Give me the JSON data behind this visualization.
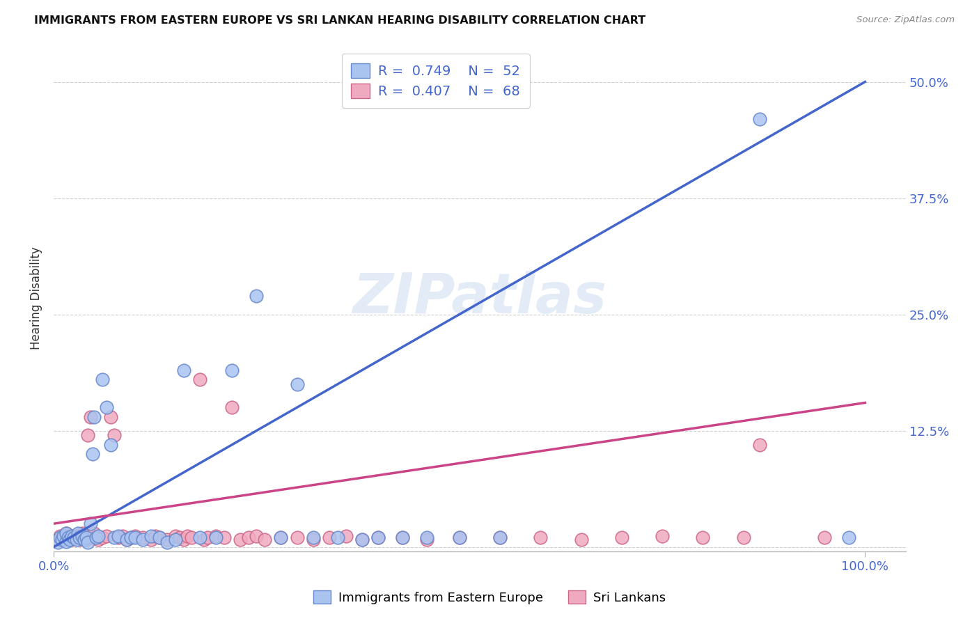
{
  "title": "IMMIGRANTS FROM EASTERN EUROPE VS SRI LANKAN HEARING DISABILITY CORRELATION CHART",
  "source": "Source: ZipAtlas.com",
  "ylabel": "Hearing Disability",
  "xlim": [
    0.0,
    1.05
  ],
  "ylim": [
    -0.005,
    0.54
  ],
  "xticks": [
    0.0,
    1.0
  ],
  "xticklabels": [
    "0.0%",
    "100.0%"
  ],
  "ytick_positions": [
    0.125,
    0.25,
    0.375,
    0.5
  ],
  "yticklabels": [
    "12.5%",
    "25.0%",
    "37.5%",
    "50.0%"
  ],
  "grid_color": "#d0d0d0",
  "background_color": "#ffffff",
  "watermark_text": "ZIPatlas",
  "watermark_color": "#c8d8f0",
  "legend_label1": "Immigrants from Eastern Europe",
  "legend_label2": "Sri Lankans",
  "legend_R1": "0.749",
  "legend_N1": "52",
  "legend_R2": "0.407",
  "legend_N2": "68",
  "color_blue_face": "#aac4f0",
  "color_blue_edge": "#6688cc",
  "color_pink_face": "#f0aac0",
  "color_pink_edge": "#cc6688",
  "line_color_blue": "#4466cc",
  "line_color_pink": "#cc4488",
  "blue_line_x0": 0.0,
  "blue_line_y0": 0.0,
  "blue_line_x1": 1.0,
  "blue_line_y1": 0.5,
  "pink_line_x0": 0.0,
  "pink_line_y0": 0.025,
  "pink_line_x1": 1.0,
  "pink_line_y1": 0.155,
  "blue_x": [
    0.005,
    0.008,
    0.01,
    0.012,
    0.015,
    0.015,
    0.018,
    0.02,
    0.022,
    0.025,
    0.028,
    0.03,
    0.032,
    0.035,
    0.038,
    0.04,
    0.042,
    0.045,
    0.048,
    0.05,
    0.052,
    0.055,
    0.06,
    0.065,
    0.07,
    0.075,
    0.08,
    0.09,
    0.095,
    0.1,
    0.11,
    0.12,
    0.13,
    0.14,
    0.15,
    0.16,
    0.18,
    0.2,
    0.22,
    0.25,
    0.28,
    0.3,
    0.32,
    0.35,
    0.38,
    0.4,
    0.43,
    0.46,
    0.5,
    0.55,
    0.87,
    0.98
  ],
  "blue_y": [
    0.005,
    0.01,
    0.008,
    0.012,
    0.006,
    0.015,
    0.01,
    0.008,
    0.012,
    0.01,
    0.008,
    0.015,
    0.01,
    0.012,
    0.008,
    0.01,
    0.005,
    0.025,
    0.1,
    0.14,
    0.01,
    0.012,
    0.18,
    0.15,
    0.11,
    0.01,
    0.012,
    0.008,
    0.01,
    0.01,
    0.008,
    0.012,
    0.01,
    0.005,
    0.008,
    0.19,
    0.01,
    0.01,
    0.19,
    0.27,
    0.01,
    0.175,
    0.01,
    0.01,
    0.008,
    0.01,
    0.01,
    0.01,
    0.01,
    0.01,
    0.46,
    0.01
  ],
  "pink_x": [
    0.005,
    0.008,
    0.01,
    0.012,
    0.015,
    0.018,
    0.02,
    0.022,
    0.025,
    0.028,
    0.03,
    0.032,
    0.035,
    0.038,
    0.04,
    0.042,
    0.045,
    0.048,
    0.05,
    0.055,
    0.06,
    0.065,
    0.07,
    0.075,
    0.08,
    0.085,
    0.09,
    0.095,
    0.1,
    0.11,
    0.12,
    0.125,
    0.13,
    0.14,
    0.15,
    0.155,
    0.16,
    0.165,
    0.17,
    0.18,
    0.185,
    0.19,
    0.2,
    0.21,
    0.22,
    0.23,
    0.24,
    0.25,
    0.26,
    0.28,
    0.3,
    0.32,
    0.34,
    0.36,
    0.38,
    0.4,
    0.43,
    0.46,
    0.5,
    0.55,
    0.6,
    0.65,
    0.7,
    0.75,
    0.8,
    0.85,
    0.87,
    0.95
  ],
  "pink_y": [
    0.008,
    0.012,
    0.01,
    0.008,
    0.015,
    0.01,
    0.012,
    0.008,
    0.01,
    0.012,
    0.01,
    0.008,
    0.015,
    0.01,
    0.008,
    0.12,
    0.14,
    0.01,
    0.015,
    0.008,
    0.01,
    0.012,
    0.14,
    0.12,
    0.01,
    0.012,
    0.008,
    0.01,
    0.012,
    0.01,
    0.008,
    0.012,
    0.01,
    0.008,
    0.012,
    0.01,
    0.008,
    0.012,
    0.01,
    0.18,
    0.008,
    0.01,
    0.012,
    0.01,
    0.15,
    0.008,
    0.01,
    0.012,
    0.008,
    0.01,
    0.01,
    0.008,
    0.01,
    0.012,
    0.008,
    0.01,
    0.01,
    0.008,
    0.01,
    0.01,
    0.01,
    0.008,
    0.01,
    0.012,
    0.01,
    0.01,
    0.11,
    0.01
  ]
}
